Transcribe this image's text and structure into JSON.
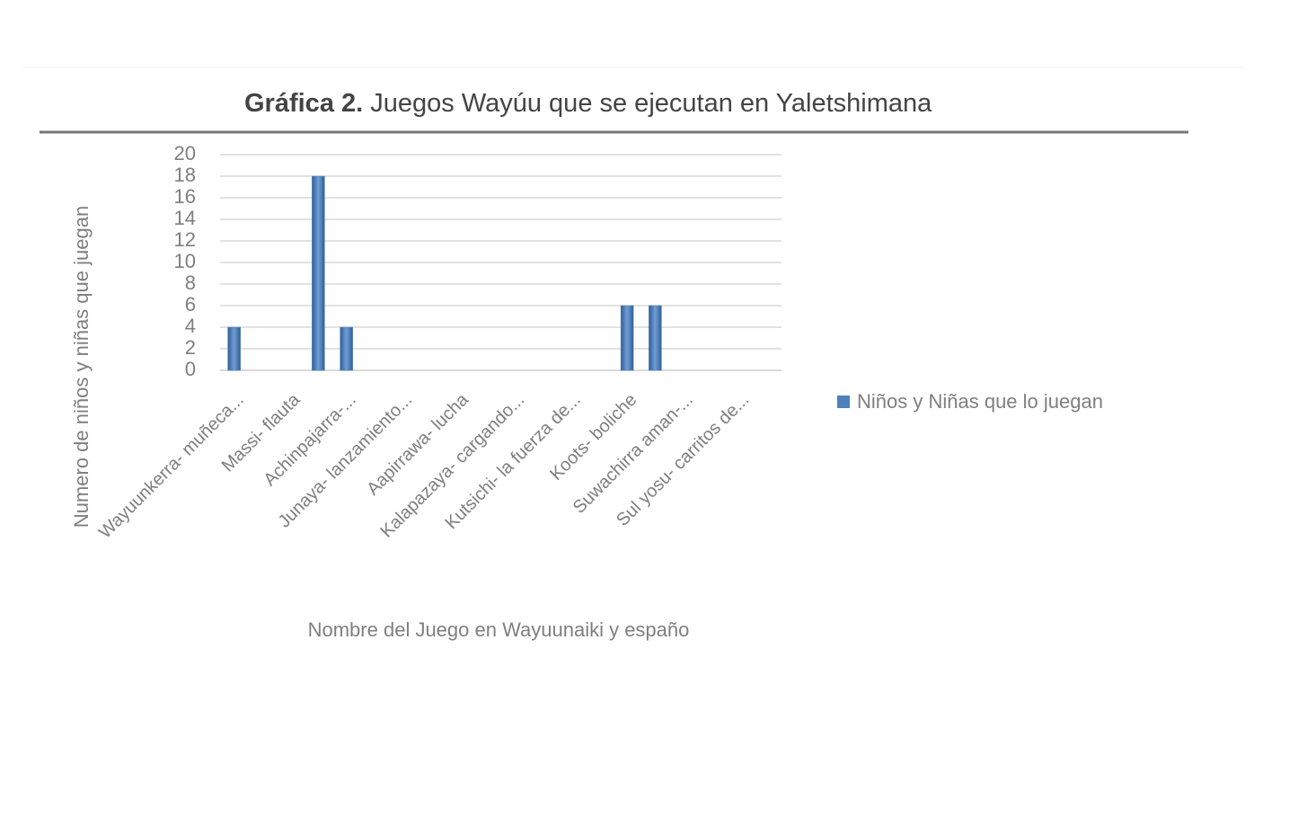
{
  "chart_data": {
    "type": "bar",
    "title_label": "Gráfica 2.",
    "title": "Juegos Wayúu que se ejecutan en Yaletshimana",
    "y_label": "Numero de niños y niñas que juegan",
    "x_label": "Nombre del Juego en Wayuunaiki y españo",
    "categories": [
      "Wayuunkerra- muñeca...",
      null,
      "Massi- flauta",
      null,
      "Achinpajarra-...",
      null,
      "Junaya- lanzamiento...",
      null,
      "Aapirrawa- lucha",
      null,
      "Kalapazaya- cargando...",
      null,
      "Kutsichi- la fuerza de...",
      null,
      "Koots- boliche",
      null,
      "Suwachirra aman-...",
      null,
      "Sul yosu- carritos de...",
      null
    ],
    "series": [
      {
        "name": "Niños y Niñas que lo juegan",
        "color": "#4f81bd",
        "values": [
          4,
          0,
          0,
          18,
          4,
          0,
          0,
          0,
          0,
          0,
          0,
          0,
          0,
          0,
          6,
          6,
          0,
          0,
          0,
          0
        ]
      }
    ],
    "ylim": [
      0,
      20
    ],
    "yticks": [
      0,
      2,
      4,
      6,
      8,
      10,
      12,
      14,
      16,
      18,
      20
    ],
    "grid": true,
    "legend": "right"
  }
}
